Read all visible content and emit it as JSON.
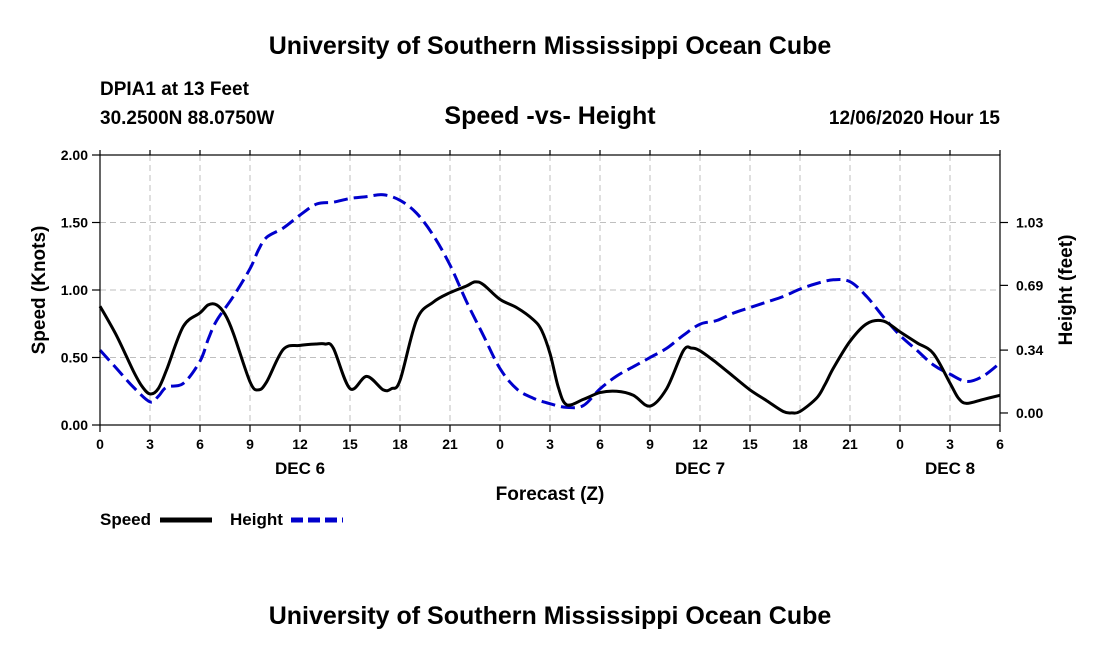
{
  "page": {
    "title_top": "University of Southern Mississippi Ocean Cube",
    "title_bottom": "University of Southern Mississippi Ocean Cube",
    "station": "DPIA1 at 13 Feet",
    "location": "30.2500N 88.0750W",
    "chart_title": "Speed -vs- Height",
    "issue_time": "12/06/2020 Hour 15"
  },
  "colors": {
    "speed": "#000000",
    "height": "#0000cc",
    "grid": "#bfbfbf",
    "axis": "#000000"
  },
  "chart_data": {
    "type": "line",
    "title": "Speed -vs- Height",
    "xlabel": "Forecast (Z)",
    "ylabel": "Speed (Knots)",
    "y2label": "Height (feet)",
    "xlim": [
      0,
      54
    ],
    "ylim": [
      0,
      2
    ],
    "y2lim": [
      -0.065,
      1.395
    ],
    "x_ticks": [
      0,
      3,
      6,
      9,
      12,
      15,
      18,
      21,
      24,
      27,
      30,
      33,
      36,
      39,
      42,
      45,
      48,
      51,
      54
    ],
    "x_tick_labels": [
      "0",
      "3",
      "6",
      "9",
      "12",
      "15",
      "18",
      "21",
      "0",
      "3",
      "6",
      "9",
      "12",
      "15",
      "18",
      "21",
      "0",
      "3",
      "6"
    ],
    "y_ticks": [
      0,
      0.5,
      1.0,
      1.5,
      2.0
    ],
    "y_tick_labels": [
      "0.00",
      "0.50",
      "1.00",
      "1.50",
      "2.00"
    ],
    "y2_ticks": [
      0,
      0.34,
      0.69,
      1.03
    ],
    "y2_tick_labels": [
      "0.00",
      "0.34",
      "0.69",
      "1.03"
    ],
    "day_labels": [
      {
        "x": 12,
        "label": "DEC 6"
      },
      {
        "x": 36,
        "label": "DEC 7"
      },
      {
        "x": 51,
        "label": "DEC 8"
      }
    ],
    "grid": true,
    "legend_position": "bottom-left",
    "series": [
      {
        "name": "Speed",
        "axis": "left",
        "style": "solid",
        "x": [
          0,
          1,
          2,
          2.5,
          3,
          3.5,
          4,
          5,
          6,
          6.5,
          7,
          7.5,
          8,
          9,
          9.5,
          10,
          11,
          12,
          13,
          13.5,
          14,
          15,
          16,
          17,
          17.5,
          18,
          19,
          20,
          21,
          22,
          22.5,
          23,
          24,
          25,
          26,
          26.5,
          27,
          27.5,
          28,
          29,
          30,
          31,
          32,
          33,
          34,
          35,
          35.5,
          36,
          37,
          38,
          39,
          40,
          41,
          41.5,
          42,
          43,
          43.5,
          44,
          45,
          46,
          47,
          48,
          49,
          50,
          51,
          51.5,
          52,
          53,
          54
        ],
        "values": [
          0.88,
          0.66,
          0.4,
          0.29,
          0.23,
          0.27,
          0.41,
          0.73,
          0.83,
          0.89,
          0.89,
          0.82,
          0.68,
          0.32,
          0.26,
          0.32,
          0.56,
          0.59,
          0.6,
          0.6,
          0.57,
          0.27,
          0.36,
          0.26,
          0.27,
          0.33,
          0.78,
          0.91,
          0.98,
          1.03,
          1.06,
          1.04,
          0.93,
          0.87,
          0.78,
          0.7,
          0.53,
          0.28,
          0.15,
          0.19,
          0.24,
          0.25,
          0.22,
          0.14,
          0.27,
          0.55,
          0.57,
          0.55,
          0.46,
          0.36,
          0.26,
          0.18,
          0.1,
          0.09,
          0.1,
          0.2,
          0.3,
          0.42,
          0.62,
          0.75,
          0.77,
          0.69,
          0.61,
          0.53,
          0.31,
          0.2,
          0.16,
          0.19,
          0.22
        ]
      },
      {
        "name": "Height",
        "axis": "right",
        "style": "dashed",
        "x": [
          0,
          1,
          2,
          3,
          3.5,
          4,
          5,
          6,
          6.5,
          7,
          8,
          9,
          9.5,
          10,
          11,
          12,
          13,
          14,
          15,
          16,
          17,
          18,
          19,
          20,
          21,
          22,
          23,
          24,
          25,
          26,
          27,
          28,
          29,
          30,
          31,
          32,
          33,
          34,
          35,
          36,
          37,
          38,
          39,
          40,
          41,
          42,
          43,
          44,
          45,
          46,
          47,
          48,
          49,
          50,
          51,
          52,
          53,
          54
        ],
        "values": [
          0.34,
          0.24,
          0.14,
          0.06,
          0.09,
          0.14,
          0.16,
          0.28,
          0.4,
          0.5,
          0.63,
          0.78,
          0.88,
          0.95,
          1.0,
          1.07,
          1.13,
          1.14,
          1.16,
          1.17,
          1.18,
          1.15,
          1.08,
          0.96,
          0.8,
          0.6,
          0.42,
          0.24,
          0.13,
          0.08,
          0.05,
          0.03,
          0.04,
          0.13,
          0.2,
          0.25,
          0.3,
          0.35,
          0.42,
          0.48,
          0.5,
          0.54,
          0.57,
          0.6,
          0.63,
          0.67,
          0.7,
          0.72,
          0.71,
          0.63,
          0.52,
          0.42,
          0.34,
          0.26,
          0.21,
          0.17,
          0.2,
          0.27
        ]
      }
    ]
  },
  "legend": {
    "speed_label": "Speed",
    "height_label": "Height"
  }
}
